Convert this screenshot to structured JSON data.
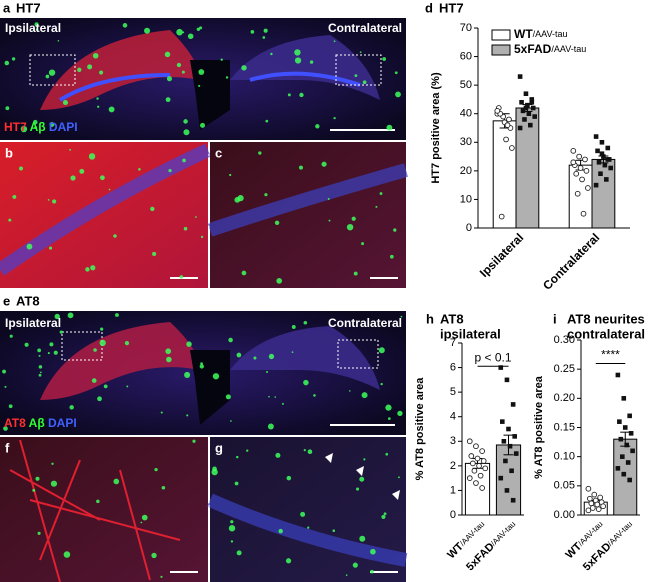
{
  "figure": {
    "panel_a": {
      "label": "a",
      "title": "HT7",
      "left": "Ipsilateral",
      "right": "Contralateral",
      "stain": [
        "HT7",
        "Aβ",
        "DAPI"
      ]
    },
    "panel_b": {
      "label": "b"
    },
    "panel_c": {
      "label": "c"
    },
    "panel_e": {
      "label": "e",
      "title": "AT8",
      "left": "Ipsilateral",
      "right": "Contralateral",
      "stain": [
        "AT8",
        "Aβ",
        "DAPI"
      ]
    },
    "panel_f": {
      "label": "f"
    },
    "panel_g": {
      "label": "g"
    }
  },
  "chart_data": [
    {
      "type": "bar",
      "panel": "d",
      "title": [
        "HT7"
      ],
      "y_label": "HT7 positive area (%)",
      "categories": [
        "Ipsilateral",
        "Contralateral"
      ],
      "ylim": [
        0,
        70
      ],
      "yticks": [
        0,
        10,
        20,
        30,
        40,
        50,
        60,
        70
      ],
      "series": [
        {
          "name": "WT",
          "name_suffix": "/AAV-tau",
          "color": "#ffffff",
          "marker": "circle",
          "values": [
            37.5,
            22
          ],
          "errors": [
            2.5,
            1.7
          ],
          "points": [
            [
              40,
              39,
              38,
              42,
              37,
              35,
              40,
              31,
              28,
              4,
              36,
              41
            ],
            [
              27,
              25,
              24,
              22,
              21,
              20,
              19,
              17,
              14,
              12,
              5,
              23
            ]
          ]
        },
        {
          "name": "5xFAD",
          "name_suffix": "/AAV-tau",
          "color": "#b0b0b0",
          "marker": "square",
          "values": [
            42,
            24
          ],
          "errors": [
            1.2,
            1.2
          ],
          "points": [
            [
              53,
              47,
              45,
              44,
              43,
              42,
              41,
              40,
              39,
              38,
              36,
              35,
              42,
              44
            ],
            [
              32,
              30,
              28,
              27,
              25,
              24,
              23,
              22,
              21,
              19,
              17,
              15,
              26,
              24
            ]
          ]
        }
      ]
    },
    {
      "type": "bar",
      "panel": "h",
      "title": [
        "AT8",
        "ipsilateral"
      ],
      "y_label": "% AT8 positive area",
      "categories": [
        "WT",
        "5xFAD"
      ],
      "category_suffix": "/AAV-tau",
      "colors": [
        "#ffffff",
        "#b0b0b0"
      ],
      "markers": [
        "circle",
        "square"
      ],
      "values": [
        2.1,
        2.85
      ],
      "errors": [
        0.2,
        0.4
      ],
      "ylim": [
        0,
        7
      ],
      "yticks": [
        0,
        1,
        2,
        3,
        4,
        5,
        6,
        7
      ],
      "annotation": "p < 0.1",
      "points": [
        [
          3.0,
          2.8,
          2.6,
          2.4,
          2.3,
          2.2,
          2.1,
          2.0,
          1.9,
          1.8,
          1.6,
          1.5,
          1.3,
          1.1
        ],
        [
          6.0,
          5.5,
          4.5,
          3.8,
          3.5,
          3.2,
          3.0,
          2.8,
          2.5,
          2.2,
          1.8,
          1.5,
          1.0,
          0.6
        ]
      ]
    },
    {
      "type": "bar",
      "panel": "i",
      "title": [
        "AT8 neurites",
        "contralateral"
      ],
      "y_label": "% AT8 positive area",
      "categories": [
        "WT",
        "5xFAD"
      ],
      "category_suffix": "/AAV-tau",
      "colors": [
        "#ffffff",
        "#b0b0b0"
      ],
      "markers": [
        "circle",
        "square"
      ],
      "values": [
        0.022,
        0.13
      ],
      "errors": [
        0.003,
        0.012
      ],
      "ylim": [
        0,
        0.3
      ],
      "yticks": [
        {
          "value": 0,
          "label": "0.00"
        },
        {
          "value": 0.05,
          "label": "0.05"
        },
        {
          "value": 0.1,
          "label": "0.10"
        },
        {
          "value": 0.15,
          "label": "0.15"
        },
        {
          "value": 0.2,
          "label": "0.20"
        },
        {
          "value": 0.25,
          "label": "0.25"
        },
        {
          "value": 0.3,
          "label": "0.30"
        }
      ],
      "annotation": "****",
      "points": [
        [
          0.045,
          0.035,
          0.03,
          0.028,
          0.025,
          0.022,
          0.02,
          0.018,
          0.015,
          0.012,
          0.01,
          0.008
        ],
        [
          0.24,
          0.2,
          0.17,
          0.16,
          0.15,
          0.14,
          0.13,
          0.12,
          0.11,
          0.1,
          0.09,
          0.08,
          0.07,
          0.06
        ]
      ]
    }
  ]
}
